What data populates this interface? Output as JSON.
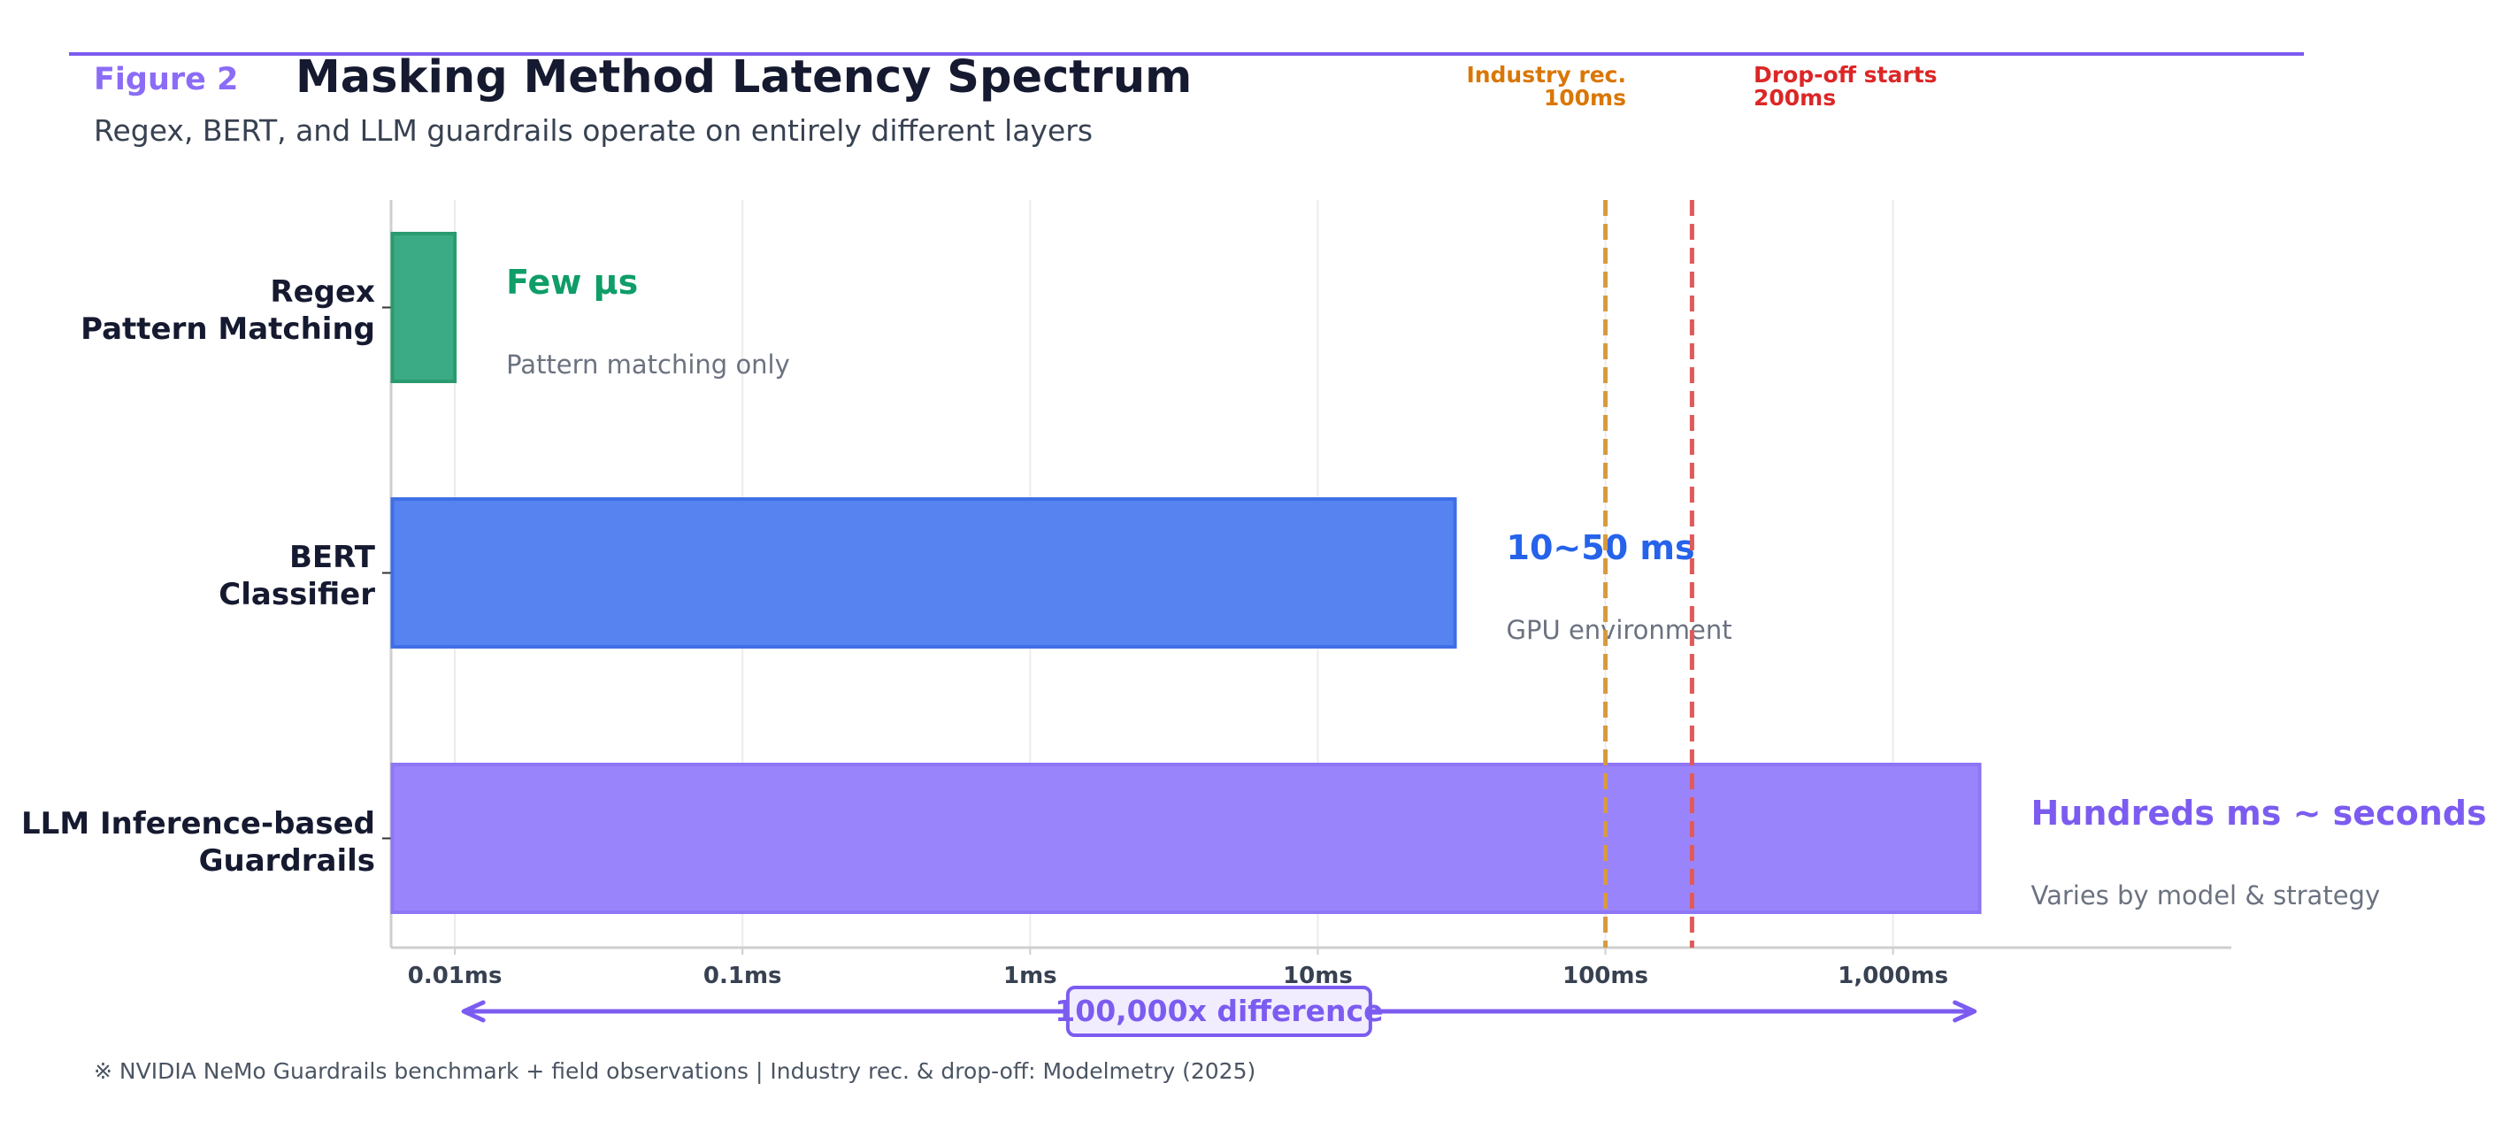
{
  "header": {
    "figure_label": "Figure 2",
    "title": "Masking Method Latency Spectrum",
    "subtitle": "Regex, BERT, and LLM guardrails operate on entirely different layers"
  },
  "chart_data": {
    "type": "bar",
    "orientation": "horizontal",
    "x_scale": "log",
    "xlim_ms": [
      0.006,
      15000
    ],
    "x_ticks": [
      {
        "value": 0.01,
        "label": "0.01ms"
      },
      {
        "value": 0.1,
        "label": "0.1ms"
      },
      {
        "value": 1,
        "label": "1ms"
      },
      {
        "value": 10,
        "label": "10ms"
      },
      {
        "value": 100,
        "label": "100ms"
      },
      {
        "value": 1000,
        "label": "1,000ms"
      }
    ],
    "grid": "vertical",
    "categories": [
      "Regex\nPattern Matching",
      "BERT\nClassifier",
      "LLM Inference-based\nGuardrails"
    ],
    "bars": [
      {
        "category_lines": [
          "Regex",
          "Pattern Matching"
        ],
        "start_ms": 0.006,
        "end_ms": 0.01,
        "label": "Few μs",
        "note": "Pattern matching only",
        "fill": "#3aab84",
        "stroke": "#2a9a6f",
        "label_color": "#0f9d68"
      },
      {
        "category_lines": [
          "BERT",
          "Classifier"
        ],
        "start_ms": 0.006,
        "end_ms": 30,
        "label": "10~50 ms",
        "note": "GPU environment",
        "fill": "#5683f0",
        "stroke": "#3f6fe6",
        "label_color": "#2563eb"
      },
      {
        "category_lines": [
          "LLM Inference-based",
          "Guardrails"
        ],
        "start_ms": 0.006,
        "end_ms": 2000,
        "label": "Hundreds ms ~ seconds",
        "note": "Varies by model & strategy",
        "fill": "#9a84fb",
        "stroke": "#8e76f5",
        "label_color": "#7c5cf0"
      }
    ],
    "reference_lines": [
      {
        "value_ms": 100,
        "lines": [
          "Industry rec.",
          "100ms"
        ],
        "color": "#d89a3e",
        "label_color": "#d97706"
      },
      {
        "value_ms": 200,
        "lines": [
          "Drop-off starts",
          "200ms"
        ],
        "color": "#e05a5a",
        "label_color": "#dc2626"
      }
    ],
    "span_annotation": {
      "from_ms": 0.01,
      "to_ms": 1000,
      "label": "100,000x difference",
      "color": "#7c5cf0"
    }
  },
  "footnote": "※ NVIDIA NeMo Guardrails benchmark + field observations  |  Industry rec. & drop-off: Modelmetry (2025)",
  "colors": {
    "accent": "#7c5cf0",
    "axis": "#cfcfcf",
    "grid": "#ececec",
    "note": "#6b7280"
  }
}
